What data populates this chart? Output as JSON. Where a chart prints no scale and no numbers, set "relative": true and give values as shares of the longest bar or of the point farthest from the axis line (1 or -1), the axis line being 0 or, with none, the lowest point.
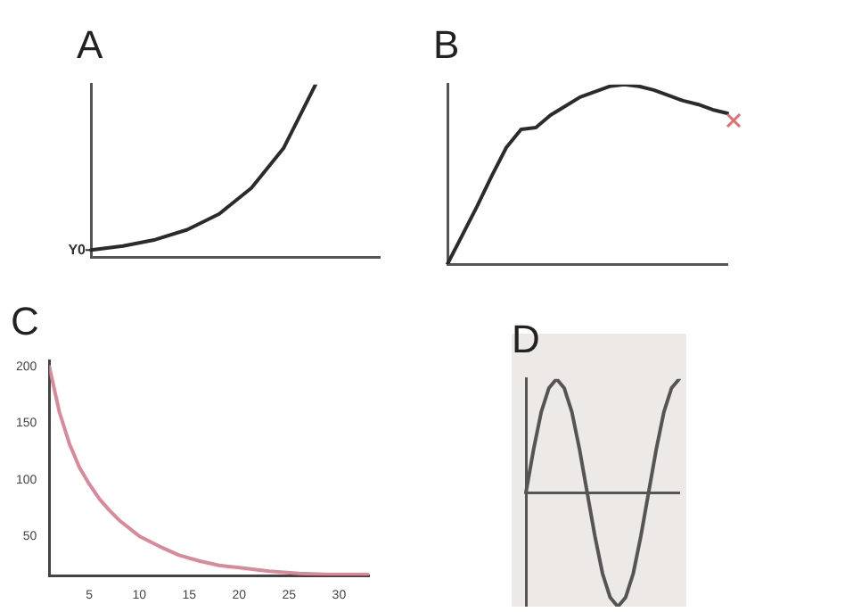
{
  "chart_data": [
    {
      "type": "line",
      "title": "A",
      "relative": true,
      "tick_labels": false,
      "grid": false,
      "legend": false,
      "marker": "none",
      "line_style": "solid",
      "categories": [
        null,
        null,
        null,
        null,
        null,
        null,
        null,
        null,
        null,
        null
      ],
      "series": [
        {
          "color": "#2b2b2b",
          "values": [
            0.04,
            0.063,
            0.1,
            0.158,
            0.25,
            0.4,
            0.63,
            1.0,
            null,
            null
          ]
        }
      ],
      "annotations": [
        "Y0"
      ]
    },
    {
      "type": "line",
      "title": "B",
      "relative": true,
      "tick_labels": false,
      "grid": false,
      "legend": false,
      "marker": "none",
      "line_style": "solid",
      "categories": [
        null,
        null,
        null,
        null,
        null,
        null,
        null,
        null,
        null,
        null,
        null,
        null,
        null,
        null,
        null,
        null,
        null,
        null,
        null,
        null
      ],
      "series": [
        {
          "color": "#2b2b2b",
          "values": [
            0,
            0.16,
            0.32,
            0.49,
            0.65,
            0.75,
            0.76,
            0.83,
            0.88,
            0.93,
            0.96,
            0.99,
            1.0,
            0.99,
            0.97,
            0.94,
            0.91,
            0.89,
            0.86,
            0.84
          ]
        }
      ]
    },
    {
      "type": "line",
      "title": "C",
      "grid": false,
      "legend": false,
      "marker": "none",
      "line_style": "solid",
      "xlim": [
        1,
        33
      ],
      "xticks": [
        5,
        10,
        15,
        20,
        25,
        30
      ],
      "ylim": [
        15,
        205
      ],
      "yticks": [
        50,
        100,
        150,
        200
      ],
      "series": [
        {
          "color": "#d98a9a",
          "x": [
            1,
            2,
            3,
            4,
            5,
            6,
            7,
            8,
            10,
            12,
            14,
            16,
            18,
            20,
            23,
            26,
            29,
            33
          ],
          "values": [
            200,
            160,
            132,
            111,
            96,
            83,
            73,
            64,
            50,
            41,
            33,
            28,
            24,
            22,
            19,
            17,
            16,
            16
          ]
        }
      ]
    },
    {
      "type": "line",
      "title": "D",
      "relative": true,
      "tick_labels": false,
      "grid": false,
      "legend": false,
      "marker": "none",
      "line_style": "solid",
      "categories": [
        null,
        null,
        null,
        null,
        null,
        null,
        null,
        null,
        null,
        null,
        null,
        null,
        null,
        null,
        null,
        null,
        null,
        null,
        null,
        null,
        null
      ],
      "series": [
        {
          "color": "#555555",
          "values": [
            0,
            0.38,
            0.71,
            0.92,
            1,
            0.92,
            0.71,
            0.38,
            0,
            -0.38,
            -0.71,
            -0.92,
            -1,
            -0.92,
            -0.71,
            -0.38,
            0,
            0.38,
            0.71,
            0.92,
            1
          ]
        }
      ]
    }
  ]
}
